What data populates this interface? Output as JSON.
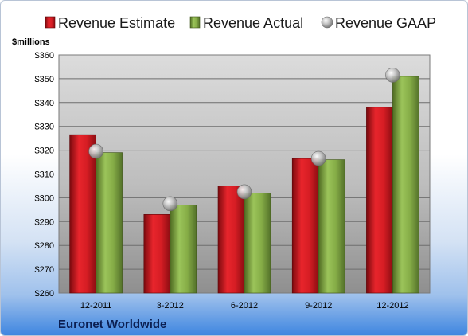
{
  "company": "Euronet Worldwide",
  "chart_data": {
    "type": "bar",
    "y_unit_label": "$millions",
    "categories": [
      "12-2011",
      "3-2012",
      "6-2012",
      "9-2012",
      "12-2012"
    ],
    "series": [
      {
        "name": "Revenue Estimate",
        "kind": "bar",
        "color": "#d91b22",
        "values": [
          326.5,
          293,
          305,
          316.5,
          338
        ]
      },
      {
        "name": "Revenue Actual",
        "kind": "bar",
        "color": "#8ab04a",
        "values": [
          319,
          297,
          302,
          316,
          351
        ]
      },
      {
        "name": "Revenue GAAP",
        "kind": "marker",
        "color": "#b8b8b8",
        "values": [
          319.5,
          297.5,
          302.5,
          316.5,
          351.5
        ]
      }
    ],
    "ylim": [
      260,
      360
    ],
    "ytick_step": 10,
    "ytick_prefix": "$",
    "grid": true,
    "legend_position": "top"
  }
}
